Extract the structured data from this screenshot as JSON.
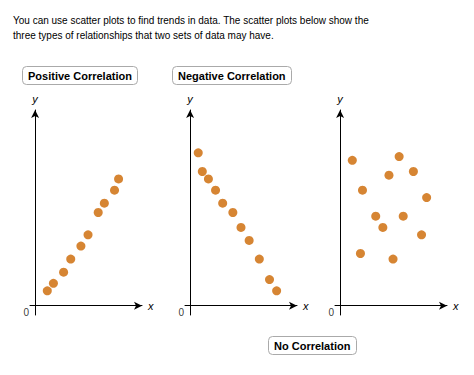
{
  "title": "You can use scatter plots to find trends in data. The scatter plots below show the\nthree types of relationships that two sets of data may have.",
  "chart_data": [
    {
      "type": "scatter",
      "title": "Positive Correlation",
      "xlabel": "x",
      "ylabel": "y",
      "x": [
        0.12,
        0.18,
        0.28,
        0.35,
        0.45,
        0.52,
        0.62,
        0.68,
        0.78,
        0.82
      ],
      "values": [
        0.08,
        0.12,
        0.18,
        0.25,
        0.32,
        0.38,
        0.5,
        0.55,
        0.62,
        0.68
      ],
      "color": "#cc6600",
      "xlim": [
        -0.05,
        1.05
      ],
      "ylim": [
        -0.05,
        1.05
      ],
      "tick_labels": false,
      "grid": false,
      "annotations": [
        {
          "text": "0",
          "x": 0,
          "y": 0
        }
      ]
    },
    {
      "type": "scatter",
      "title": "Negative Correlation",
      "xlabel": "x",
      "ylabel": "y",
      "x": [
        0.08,
        0.12,
        0.18,
        0.25,
        0.32,
        0.42,
        0.5,
        0.58,
        0.68,
        0.78,
        0.85
      ],
      "values": [
        0.82,
        0.72,
        0.68,
        0.62,
        0.55,
        0.5,
        0.42,
        0.35,
        0.25,
        0.14,
        0.08
      ],
      "color": "#cc6600",
      "xlim": [
        -0.05,
        1.05
      ],
      "ylim": [
        -0.05,
        1.05
      ],
      "tick_labels": false,
      "grid": false,
      "annotations": [
        {
          "text": "0",
          "x": 0,
          "y": 0
        }
      ]
    },
    {
      "type": "scatter",
      "title": "No Correlation",
      "xlabel": "x",
      "ylabel": "y",
      "x": [
        0.12,
        0.22,
        0.35,
        0.48,
        0.58,
        0.72,
        0.85,
        0.42,
        0.62,
        0.8,
        0.2,
        0.52
      ],
      "values": [
        0.78,
        0.62,
        0.48,
        0.7,
        0.8,
        0.72,
        0.58,
        0.42,
        0.48,
        0.38,
        0.28,
        0.25
      ],
      "color": "#cc6600",
      "xlim": [
        -0.05,
        1.05
      ],
      "ylim": [
        -0.05,
        1.05
      ],
      "tick_labels": false,
      "grid": false,
      "annotations": [
        {
          "text": "0",
          "x": 0,
          "y": 0
        }
      ]
    }
  ]
}
